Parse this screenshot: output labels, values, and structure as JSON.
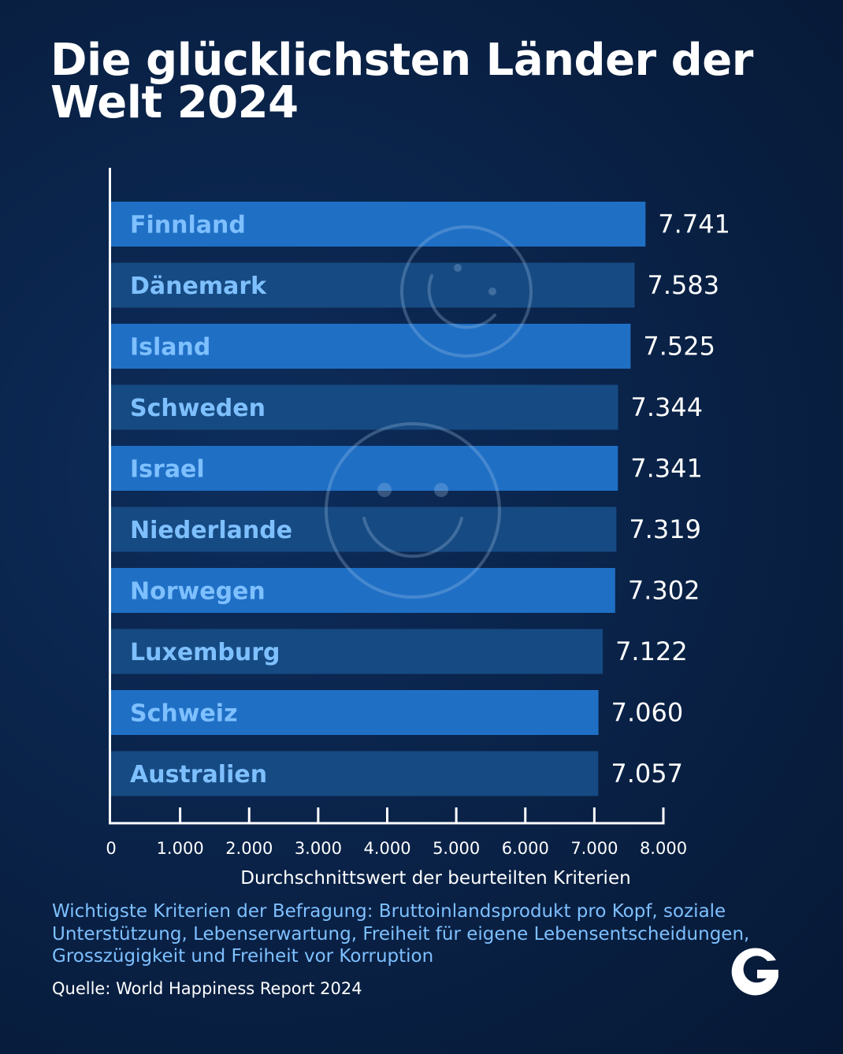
{
  "title": "Die glücklichsten Länder der Welt 2024",
  "chart_data": {
    "type": "bar",
    "orientation": "horizontal",
    "categories": [
      "Finnland",
      "Dänemark",
      "Island",
      "Schweden",
      "Israel",
      "Niederlande",
      "Norwegen",
      "Luxemburg",
      "Schweiz",
      "Australien"
    ],
    "values": [
      7.741,
      7.583,
      7.525,
      7.344,
      7.341,
      7.319,
      7.302,
      7.122,
      7.06,
      7.057
    ],
    "value_labels": [
      "7.741",
      "7.583",
      "7.525",
      "7.344",
      "7.341",
      "7.319",
      "7.302",
      "7.122",
      "7.060",
      "7.057"
    ],
    "xlabel": "Durchschnittswert der beurteilten Kriterien",
    "xlim": [
      0,
      8
    ],
    "xticks": [
      0,
      1,
      2,
      3,
      4,
      5,
      6,
      7,
      8
    ],
    "xtick_labels": [
      "0",
      "1.000",
      "2.000",
      "3.000",
      "4.000",
      "5.000",
      "6.000",
      "7.000",
      "8.000"
    ],
    "grid": false,
    "legend": "none",
    "colors": {
      "bar_light": "#1f6fc5",
      "bar_dark": "#164a82",
      "label": "#7ec0ff"
    }
  },
  "note": "Wichtigste Kriterien der Befragung: Bruttoinlandsprodukt pro Kopf, soziale Unterstützung, Lebenserwartung, Freiheit für eigene Lebensentscheidungen, Grosszügigkeit und Freiheit vor Korruption",
  "source": "Quelle: World Happiness Report 2024",
  "logo": {
    "letter": "G",
    "icon": "brand-g-logo"
  },
  "decorations": {
    "icons": [
      "smiley-icon",
      "smiley-icon"
    ]
  }
}
